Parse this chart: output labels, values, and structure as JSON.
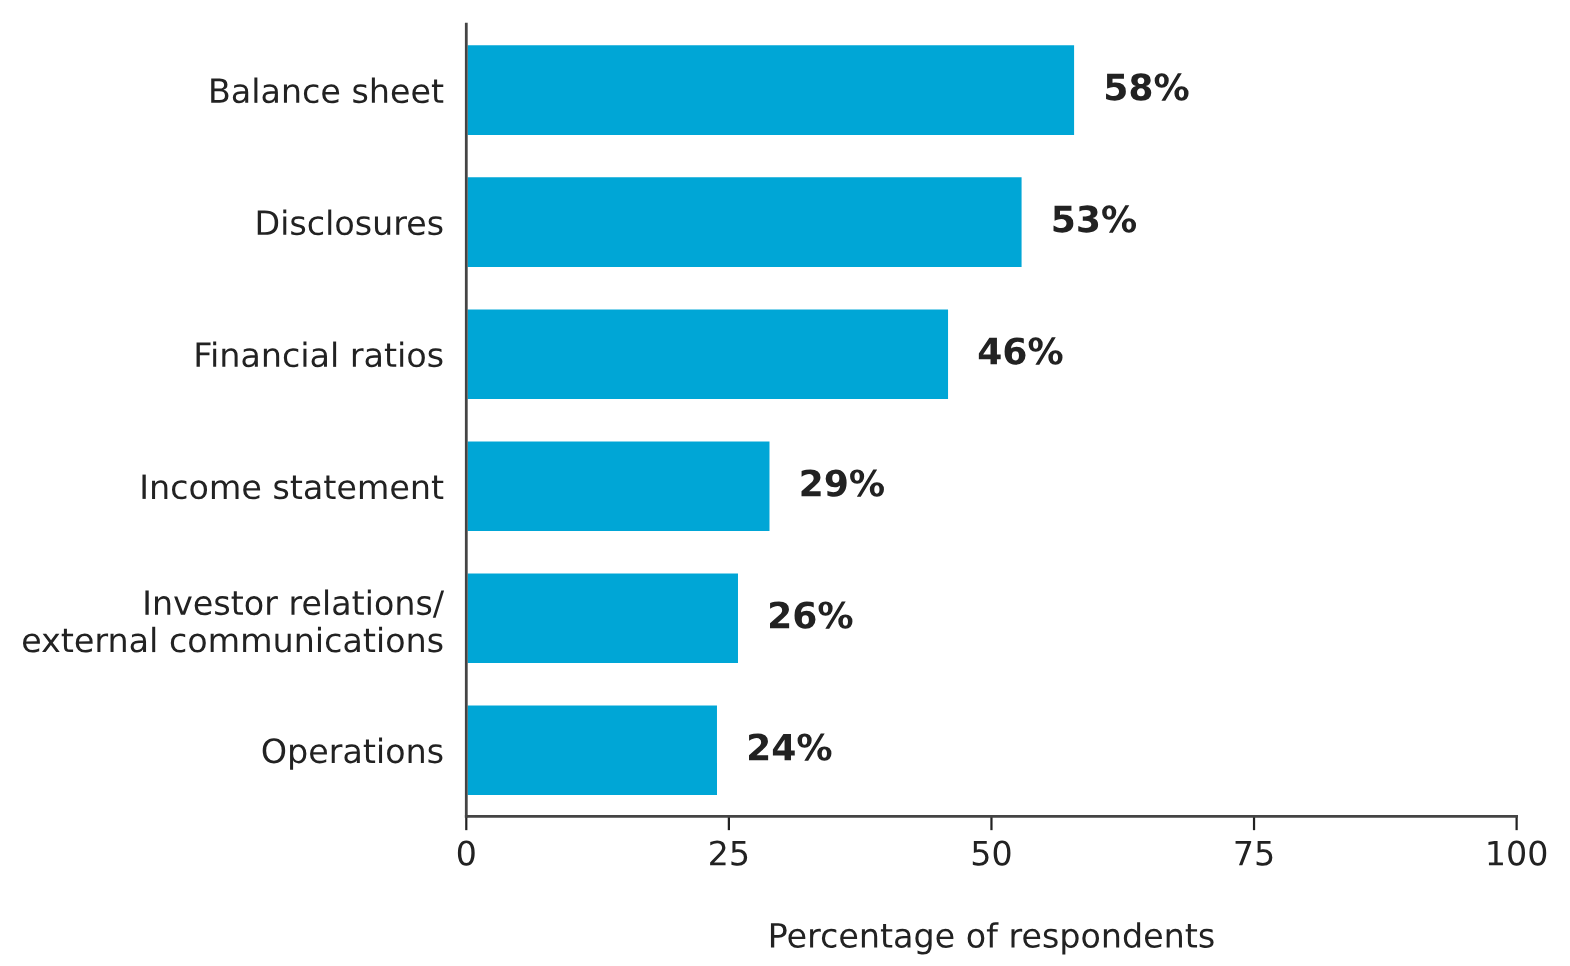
{
  "chart_data": {
    "type": "bar",
    "orientation": "horizontal",
    "xlabel": "Percentage of respondents",
    "categories": [
      "Balance sheet",
      "Disclosures",
      "Financial ratios",
      "Income statement",
      "Investor relations/\nexternal communications",
      "Operations"
    ],
    "values": [
      58,
      53,
      46,
      29,
      26,
      24
    ],
    "value_labels": [
      "58%",
      "53%",
      "46%",
      "29%",
      "26%",
      "24%"
    ],
    "color": "#00a6d6",
    "xlim": [
      0,
      100
    ],
    "xticks": [
      0,
      25,
      50,
      75,
      100
    ],
    "grid": false,
    "legend": false
  }
}
